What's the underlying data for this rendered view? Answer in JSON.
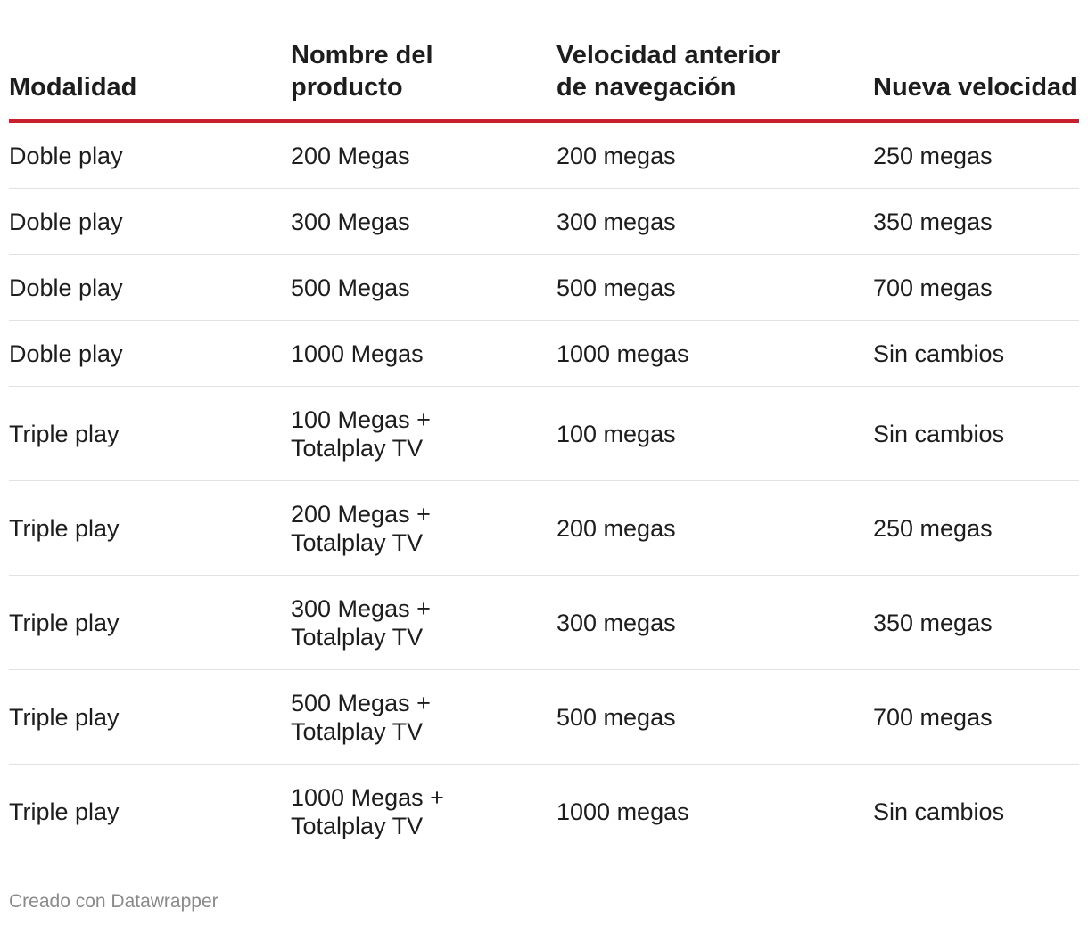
{
  "chart_data": {
    "type": "table",
    "columns": [
      "Modalidad",
      "Nombre del producto",
      "Velocidad anterior de navegación",
      "Nueva velocidad"
    ],
    "header_lines": [
      [
        "Modalidad"
      ],
      [
        "Nombre del",
        "producto"
      ],
      [
        "Velocidad anterior",
        "de navegación"
      ],
      [
        "Nueva velocidad"
      ]
    ],
    "rows": [
      {
        "modalidad": "Doble play",
        "producto": [
          "200 Megas"
        ],
        "anterior": "200 megas",
        "nueva": "250 megas"
      },
      {
        "modalidad": "Doble play",
        "producto": [
          "300 Megas"
        ],
        "anterior": "300 megas",
        "nueva": "350 megas"
      },
      {
        "modalidad": "Doble play",
        "producto": [
          "500 Megas"
        ],
        "anterior": "500 megas",
        "nueva": "700 megas"
      },
      {
        "modalidad": "Doble play",
        "producto": [
          "1000 Megas"
        ],
        "anterior": "1000 megas",
        "nueva": "Sin cambios"
      },
      {
        "modalidad": "Triple play",
        "producto": [
          "100 Megas +",
          "Totalplay TV"
        ],
        "anterior": "100 megas",
        "nueva": "Sin cambios"
      },
      {
        "modalidad": "Triple play",
        "producto": [
          "200 Megas +",
          "Totalplay TV"
        ],
        "anterior": "200 megas",
        "nueva": "250 megas"
      },
      {
        "modalidad": "Triple play",
        "producto": [
          "300 Megas +",
          "Totalplay TV"
        ],
        "anterior": "300 megas",
        "nueva": "350 megas"
      },
      {
        "modalidad": "Triple play",
        "producto": [
          "500 Megas +",
          "Totalplay TV"
        ],
        "anterior": "500 megas",
        "nueva": "700 megas"
      },
      {
        "modalidad": "Triple play",
        "producto": [
          "1000 Megas +",
          "Totalplay TV"
        ],
        "anterior": "1000 megas",
        "nueva": "Sin cambios"
      }
    ]
  },
  "footer": {
    "credit": "Creado con Datawrapper"
  },
  "colors": {
    "header_rule": "#c8202f",
    "row_divider": "#e2e2e2",
    "text": "#1d1d1d",
    "footer_text": "#8a8a8a"
  }
}
